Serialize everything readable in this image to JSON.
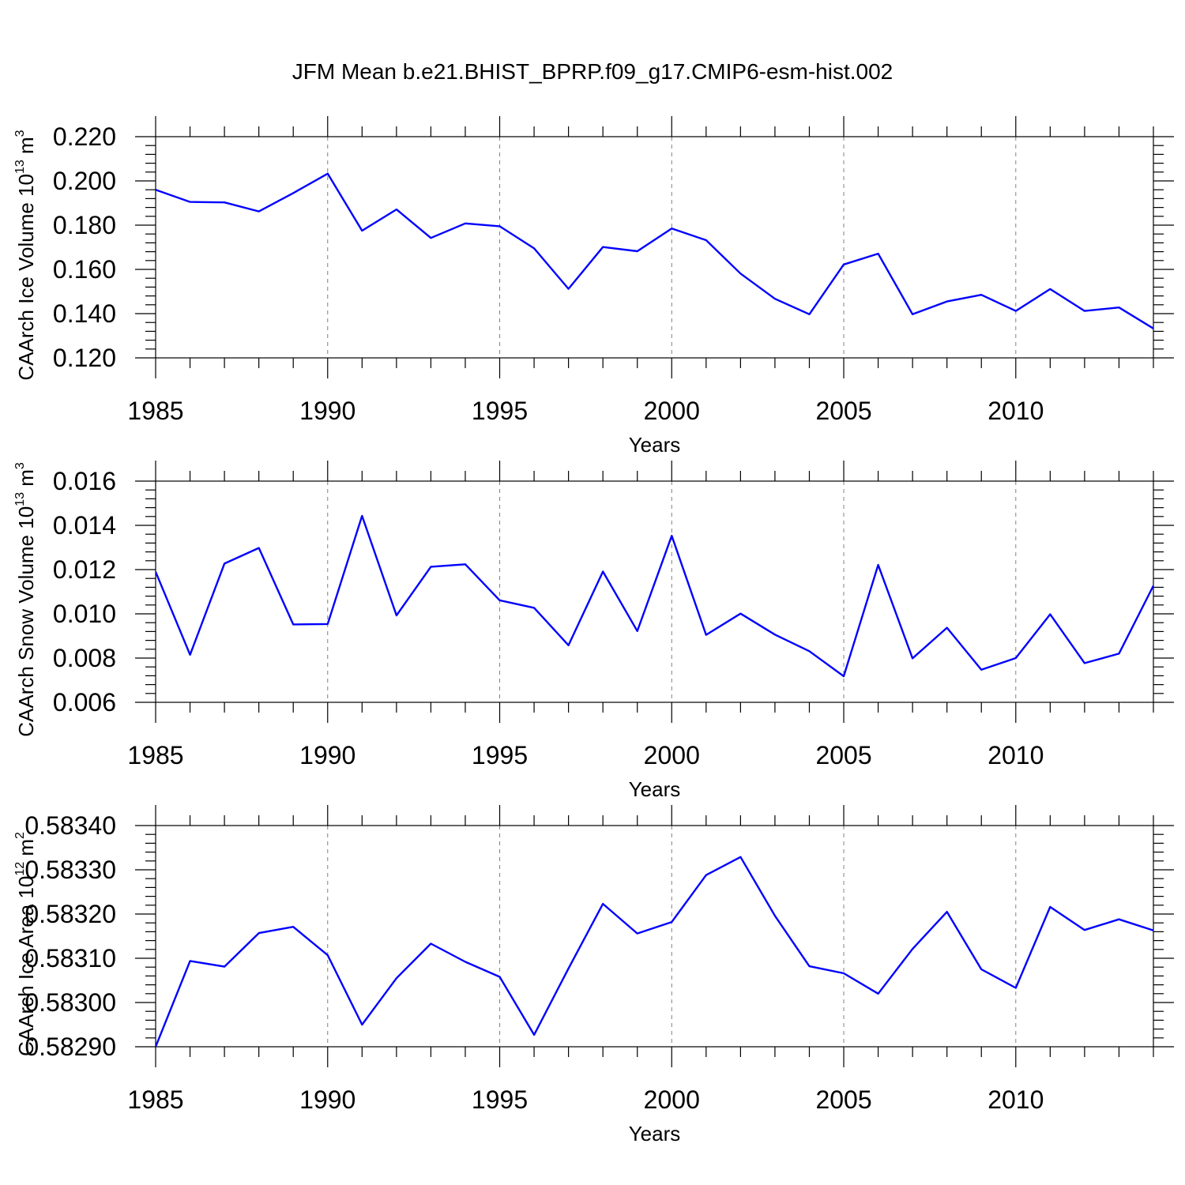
{
  "figure_title": "JFM Mean b.e21.BHIST_BPRP.f09_g17.CMIP6-esm-hist.002",
  "line_color": "#0000ff",
  "chart_data": [
    {
      "type": "line",
      "ylabel": "CAArch Ice Volume 10",
      "ylabel_exp": "13",
      "ylabel_unit": " m",
      "ylabel_unit_exp": "3",
      "xlabel": "Years",
      "xlim": [
        1985,
        2014
      ],
      "ylim": [
        0.12,
        0.22
      ],
      "x_tick_labels": [
        "1985",
        "1990",
        "1995",
        "2000",
        "2005",
        "2010"
      ],
      "y_tick_labels": [
        "0.120",
        "0.140",
        "0.160",
        "0.180",
        "0.200",
        "0.220"
      ],
      "grid": "vertical dashed at major x ticks",
      "x": [
        1985,
        1986,
        1987,
        1988,
        1989,
        1990,
        1991,
        1992,
        1993,
        1994,
        1995,
        1996,
        1997,
        1998,
        1999,
        2000,
        2001,
        2002,
        2003,
        2004,
        2005,
        2006,
        2007,
        2008,
        2009,
        2010,
        2011,
        2012,
        2013,
        2014
      ],
      "values": [
        0.196,
        0.1905,
        0.1903,
        0.1862,
        0.1945,
        0.2033,
        0.1775,
        0.1871,
        0.1742,
        0.1808,
        0.1795,
        0.1695,
        0.1512,
        0.1701,
        0.1682,
        0.1785,
        0.1732,
        0.1581,
        0.1467,
        0.1397,
        0.1622,
        0.1671,
        0.1397,
        0.1455,
        0.1485,
        0.1412,
        0.1511,
        0.1412,
        0.1428,
        0.1333
      ]
    },
    {
      "type": "line",
      "ylabel": "CAArch Snow Volume 10",
      "ylabel_exp": "13",
      "ylabel_unit": " m",
      "ylabel_unit_exp": "3",
      "xlabel": "Years",
      "xlim": [
        1985,
        2014
      ],
      "ylim": [
        0.006,
        0.016
      ],
      "x_tick_labels": [
        "1985",
        "1990",
        "1995",
        "2000",
        "2005",
        "2010"
      ],
      "y_tick_labels": [
        "0.006",
        "0.008",
        "0.010",
        "0.012",
        "0.014",
        "0.016"
      ],
      "grid": "vertical dashed at major x ticks",
      "x": [
        1985,
        1986,
        1987,
        1988,
        1989,
        1990,
        1991,
        1992,
        1993,
        1994,
        1995,
        1996,
        1997,
        1998,
        1999,
        2000,
        2001,
        2002,
        2003,
        2004,
        2005,
        2006,
        2007,
        2008,
        2009,
        2010,
        2011,
        2012,
        2013,
        2014
      ],
      "values": [
        0.0119,
        0.00815,
        0.01227,
        0.01298,
        0.00952,
        0.00954,
        0.01443,
        0.00993,
        0.01213,
        0.01224,
        0.01061,
        0.01027,
        0.00858,
        0.01191,
        0.00922,
        0.01353,
        0.00905,
        0.01001,
        0.00906,
        0.00831,
        0.00718,
        0.01221,
        0.00799,
        0.00937,
        0.00747,
        0.008,
        0.00998,
        0.00777,
        0.0082,
        0.01127
      ]
    },
    {
      "type": "line",
      "ylabel": "CAArch Ice Area 10",
      "ylabel_exp": "12",
      "ylabel_unit": " m",
      "ylabel_unit_exp": "2",
      "xlabel": "Years",
      "xlim": [
        1985,
        2014
      ],
      "ylim": [
        0.5829,
        0.5834
      ],
      "x_tick_labels": [
        "1985",
        "1990",
        "1995",
        "2000",
        "2005",
        "2010"
      ],
      "y_tick_labels": [
        "0.58290",
        "0.58300",
        "0.58310",
        "0.58320",
        "0.58330",
        "0.58340"
      ],
      "grid": "vertical dashed at major x ticks",
      "x": [
        1985,
        1986,
        1987,
        1988,
        1989,
        1990,
        1991,
        1992,
        1993,
        1994,
        1995,
        1996,
        1997,
        1998,
        1999,
        2000,
        2001,
        2002,
        2003,
        2004,
        2005,
        2006,
        2007,
        2008,
        2009,
        2010,
        2011,
        2012,
        2013,
        2014
      ],
      "values": [
        0.5829,
        0.583094,
        0.583081,
        0.583157,
        0.583171,
        0.583107,
        0.58295,
        0.583055,
        0.583133,
        0.583092,
        0.583058,
        0.582927,
        0.583077,
        0.583223,
        0.583156,
        0.583182,
        0.583288,
        0.583329,
        0.583196,
        0.583082,
        0.583066,
        0.58302,
        0.583121,
        0.583205,
        0.583075,
        0.583033,
        0.583216,
        0.583164,
        0.583188,
        0.583163
      ]
    }
  ]
}
